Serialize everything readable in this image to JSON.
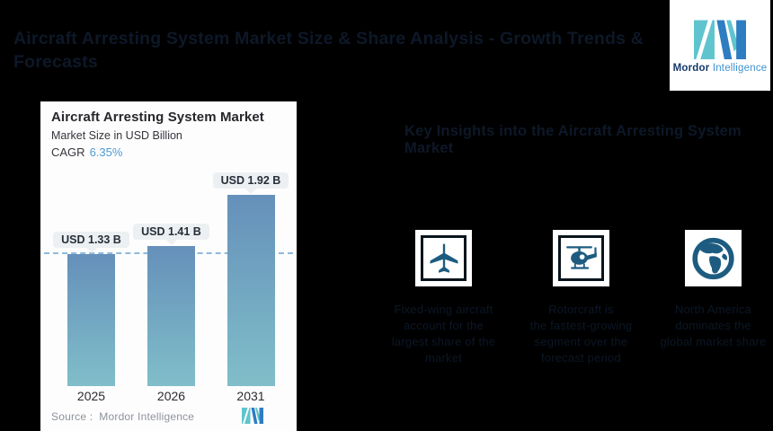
{
  "page": {
    "title_line1": "Aircraft Arresting System Market Size & Share Analysis - Growth Trends &",
    "title_line2": "Forecasts",
    "right_heading": "Key Insights into the Aircraft Arresting System Market"
  },
  "logo": {
    "brand_bold": "Mordor",
    "brand_light": "Intelligence"
  },
  "chart_panel": {
    "title": "Aircraft Arresting System Market",
    "subtitle": "Market Size in USD Billion",
    "cagr_label": "CAGR",
    "cagr_value": "6.35%",
    "source_label": "Source :",
    "source_value": "Mordor Intelligence"
  },
  "chart_data": {
    "type": "bar",
    "title": "Aircraft Arresting System Market",
    "subtitle": "Market Size in USD Billion",
    "cagr": "6.35%",
    "categories": [
      "2025",
      "2026",
      "2031"
    ],
    "values": [
      1.33,
      1.41,
      1.92
    ],
    "value_labels": [
      "USD 1.33 B",
      "USD 1.41 B",
      "USD 1.92 B"
    ],
    "ylabel": "Market Size (USD Billion)",
    "baseline_marker": 1.33,
    "ylim": [
      0,
      2.2
    ],
    "grid": false,
    "bar_color_top": "#6590ba",
    "bar_color_bottom": "#80bec9",
    "dashed_line_color": "#8fb9dc"
  },
  "features": [
    {
      "icon": "airplane-icon",
      "lines": [
        "Fixed-wing aircraft",
        "account for the",
        "largest share of the",
        "market"
      ]
    },
    {
      "icon": "helicopter-icon",
      "lines": [
        "Rotorcraft is",
        "the fastest-growing",
        "segment over the",
        "forecast period"
      ]
    },
    {
      "icon": "globe-icon",
      "lines": [
        "North America",
        "dominates the",
        "global market share"
      ]
    }
  ],
  "colors": {
    "background": "#000000",
    "panel": "#fdfdfd",
    "accent_blue": "#4e9bd4",
    "icon_teal": "#1d5c80",
    "logo_teal": "#5fc4cd",
    "logo_blue": "#2e7dc1"
  }
}
